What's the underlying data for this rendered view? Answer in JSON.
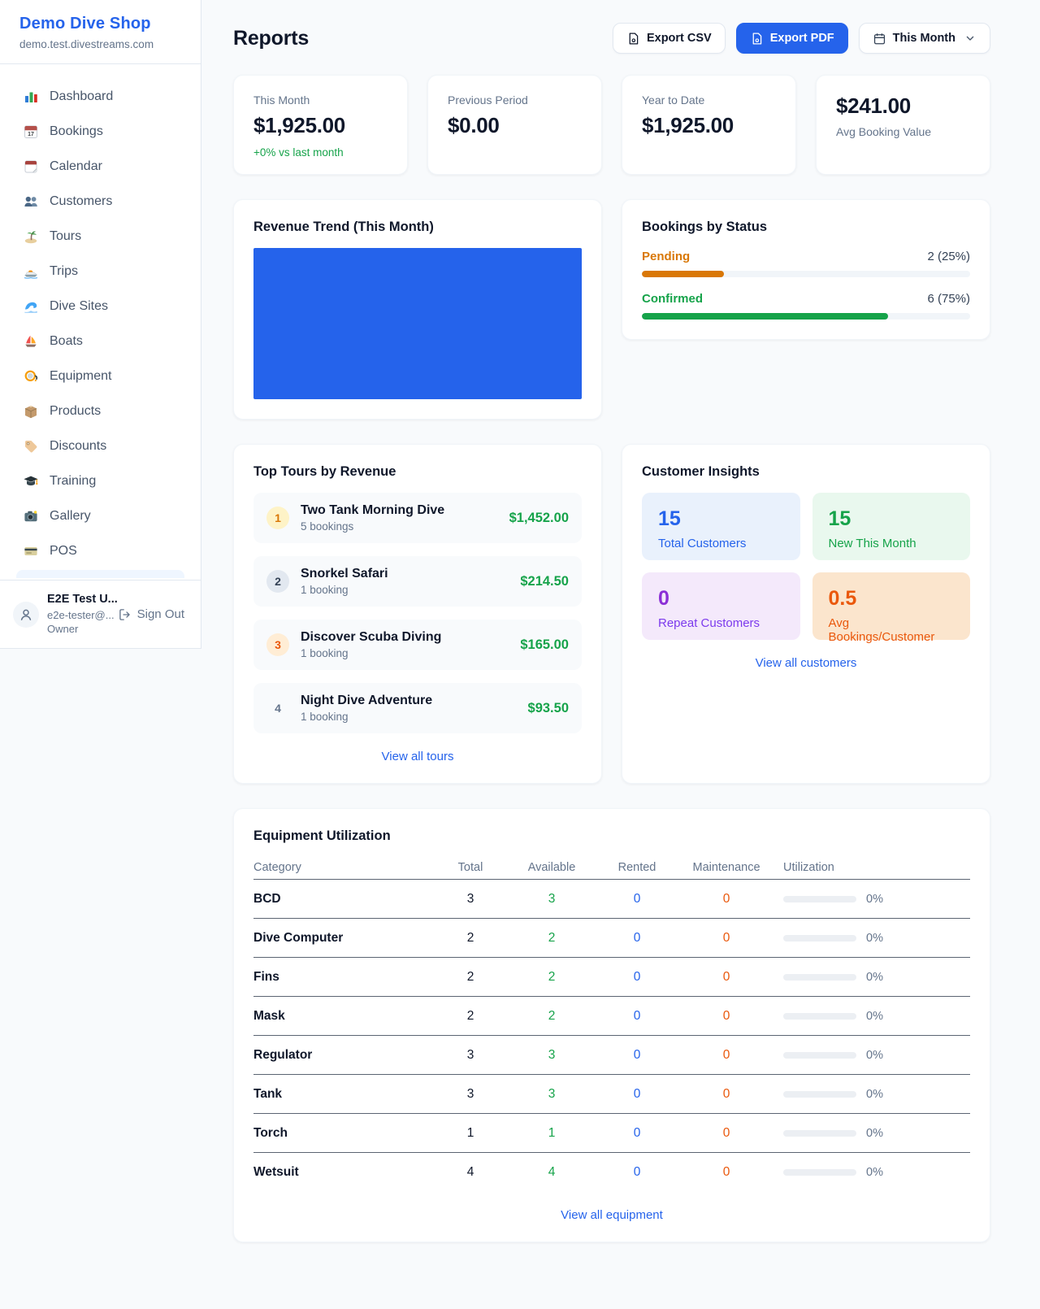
{
  "colors": {
    "accent_blue": "#2563eb",
    "green": "#16a34a",
    "pending_orange": "#d97706",
    "maintenance_orange": "#ea580c",
    "purple": "#8b2fd6",
    "page_bg": "#f8fafc"
  },
  "sidebar": {
    "brand": "Demo Dive Shop",
    "domain": "demo.test.divestreams.com",
    "items": [
      {
        "label": "Dashboard",
        "icon": "bar-chart-icon"
      },
      {
        "label": "Bookings",
        "icon": "calendar-date-icon"
      },
      {
        "label": "Calendar",
        "icon": "tear-off-calendar-icon"
      },
      {
        "label": "Customers",
        "icon": "people-icon"
      },
      {
        "label": "Tours",
        "icon": "island-icon"
      },
      {
        "label": "Trips",
        "icon": "speedboat-icon"
      },
      {
        "label": "Dive Sites",
        "icon": "wave-icon"
      },
      {
        "label": "Boats",
        "icon": "sailboat-icon"
      },
      {
        "label": "Equipment",
        "icon": "dive-mask-icon"
      },
      {
        "label": "Products",
        "icon": "package-icon"
      },
      {
        "label": "Discounts",
        "icon": "tag-icon"
      },
      {
        "label": "Training",
        "icon": "graduation-cap-icon"
      },
      {
        "label": "Gallery",
        "icon": "camera-icon"
      },
      {
        "label": "POS",
        "icon": "credit-card-icon"
      }
    ],
    "user": {
      "name": "E2E Test U...",
      "email": "e2e-tester@...",
      "role": "Owner",
      "signout_label": "Sign Out"
    }
  },
  "header": {
    "title": "Reports",
    "export_csv_label": "Export CSV",
    "export_pdf_label": "Export PDF",
    "period_label": "This Month"
  },
  "stats": [
    {
      "label": "This Month",
      "value": "$1,925.00",
      "delta": "+0% vs last month"
    },
    {
      "label": "Previous Period",
      "value": "$0.00"
    },
    {
      "label": "Year to Date",
      "value": "$1,925.00"
    },
    {
      "label": "Avg Booking Value",
      "value": "$241.00"
    }
  ],
  "revenue_trend": {
    "title": "Revenue Trend (This Month)",
    "chart_color": "#2563eb",
    "note": "solid filled bar area, no axes or labels visible"
  },
  "bookings_by_status": {
    "title": "Bookings by Status",
    "rows": [
      {
        "label": "Pending",
        "value": "2 (25%)",
        "percent": 25
      },
      {
        "label": "Confirmed",
        "value": "6 (75%)",
        "percent": 75
      }
    ]
  },
  "top_tours": {
    "title": "Top Tours by Revenue",
    "rows": [
      {
        "rank": "1",
        "name": "Two Tank Morning Dive",
        "bookings": "5 bookings",
        "revenue": "$1,452.00"
      },
      {
        "rank": "2",
        "name": "Snorkel Safari",
        "bookings": "1 booking",
        "revenue": "$214.50"
      },
      {
        "rank": "3",
        "name": "Discover Scuba Diving",
        "bookings": "1 booking",
        "revenue": "$165.00"
      },
      {
        "rank": "4",
        "name": "Night Dive Adventure",
        "bookings": "1 booking",
        "revenue": "$93.50"
      }
    ],
    "link": "View all tours"
  },
  "customer_insights": {
    "title": "Customer Insights",
    "tiles": [
      {
        "value": "15",
        "label": "Total Customers"
      },
      {
        "value": "15",
        "label": "New This Month"
      },
      {
        "value": "0",
        "label": "Repeat Customers"
      },
      {
        "value": "0.5",
        "label": "Avg Bookings/Customer"
      }
    ],
    "link": "View all customers"
  },
  "equipment": {
    "title": "Equipment Utilization",
    "columns": [
      "Category",
      "Total",
      "Available",
      "Rented",
      "Maintenance",
      "Utilization"
    ],
    "rows": [
      {
        "category": "BCD",
        "total": "3",
        "available": "3",
        "rented": "0",
        "maintenance": "0",
        "utilization": "0%"
      },
      {
        "category": "Dive Computer",
        "total": "2",
        "available": "2",
        "rented": "0",
        "maintenance": "0",
        "utilization": "0%"
      },
      {
        "category": "Fins",
        "total": "2",
        "available": "2",
        "rented": "0",
        "maintenance": "0",
        "utilization": "0%"
      },
      {
        "category": "Mask",
        "total": "2",
        "available": "2",
        "rented": "0",
        "maintenance": "0",
        "utilization": "0%"
      },
      {
        "category": "Regulator",
        "total": "3",
        "available": "3",
        "rented": "0",
        "maintenance": "0",
        "utilization": "0%"
      },
      {
        "category": "Tank",
        "total": "3",
        "available": "3",
        "rented": "0",
        "maintenance": "0",
        "utilization": "0%"
      },
      {
        "category": "Torch",
        "total": "1",
        "available": "1",
        "rented": "0",
        "maintenance": "0",
        "utilization": "0%"
      },
      {
        "category": "Wetsuit",
        "total": "4",
        "available": "4",
        "rented": "0",
        "maintenance": "0",
        "utilization": "0%"
      }
    ],
    "link": "View all equipment"
  }
}
